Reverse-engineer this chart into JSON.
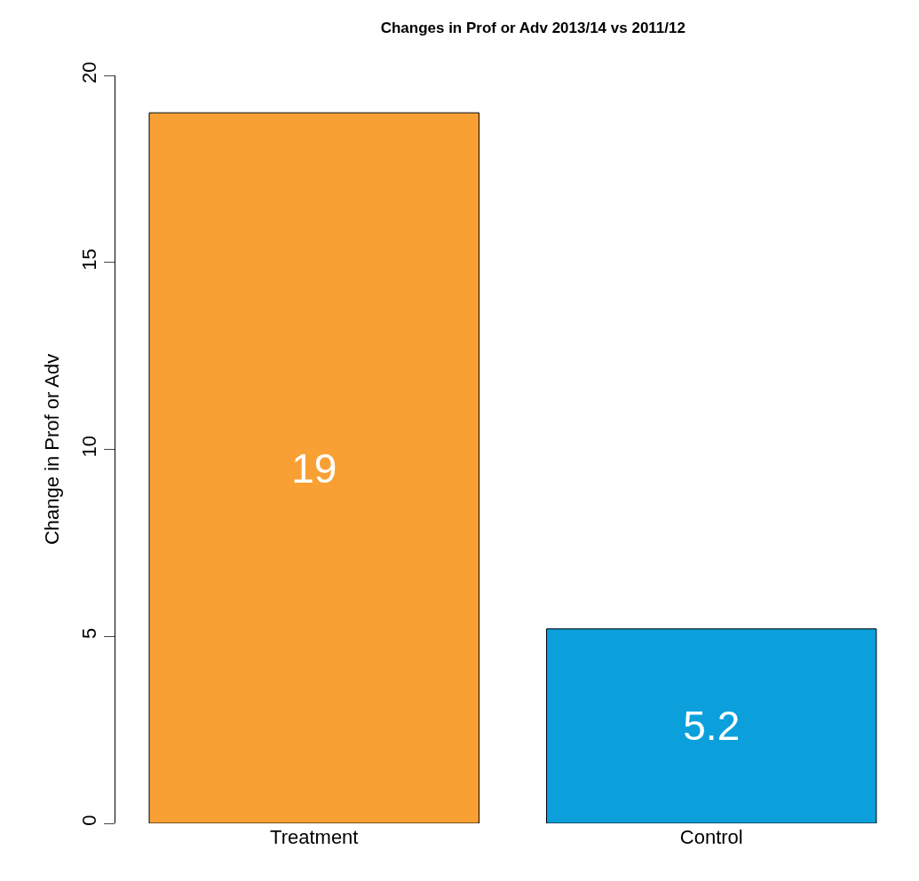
{
  "chart_data": {
    "type": "bar",
    "title": "Changes in Prof or Adv 2013/14 vs 2011/12",
    "ylabel": "Change in Prof or Adv",
    "categories": [
      "Treatment",
      "Control"
    ],
    "values": [
      19,
      5.2
    ],
    "colors": [
      "#f9a034",
      "#0ba0db"
    ],
    "ylim": [
      0,
      20
    ],
    "yticks": [
      0,
      5,
      10,
      15,
      20
    ],
    "data_labels": true
  }
}
